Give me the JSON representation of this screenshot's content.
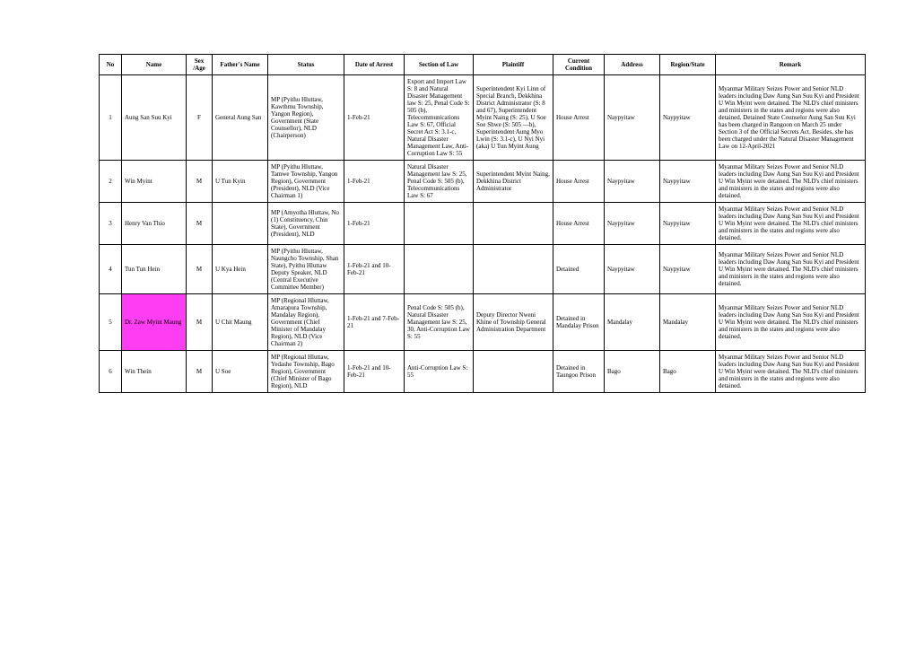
{
  "columns": [
    "No",
    "Name",
    "Sex /Age",
    "Father's Name",
    "Status",
    "Date of Arrest",
    "Section of Law",
    "Plaintiff",
    "Current Condition",
    "Address",
    "Region/State",
    "Remark"
  ],
  "rows": [
    {
      "no": "1",
      "name": "Aung San Suu Kyi",
      "sex": "F",
      "father": "General Aung San",
      "status": "MP (Pyithu Hluttaw, Kawthmu Township, Yangon Region), Government (State Counsellor), NLD (Chairperson)",
      "date": "1-Feb-21",
      "section": "Export and Import Law S: 8 and Natural Disaster Management law S: 25, Penal Code S: 505 (b), Telecommunications Law S: 67, Official Secret Act S: 3.1-c, Natural Disaster Management Law, Anti-Corruption Law S: 55",
      "plaintiff": "Superintendent Kyi Linn of Special Branch, Dekkhina District Administrator (S: 8 and 67), Superintendent Myint Naing (S: 25), U Soe Soe Shwe (S: 505 —b), Superintendent Aung Myo Lwin (S: 3.1-c), U Nyi Nyi (aka) U Tun Myint Aung",
      "condition": "House Arrest",
      "address": "Naypyitaw",
      "region": "Naypyitaw",
      "remark": "Myanmar Military Seizes Power and Senior NLD leaders including Daw Aung San Suu Kyi and President U Win Myint were detained. The NLD's chief ministers and ministers in the states and regions were also detained.\nDetained State Counselor Aung San Suu Kyi has been charged in Rangoon on March 25 under Section 3 of the Official Secrets Act. Besides, she has been charged under the Natural Disaster Management Law on 12-April-2021",
      "highlight": false
    },
    {
      "no": "2",
      "name": "Win Myint",
      "sex": "M",
      "father": "U Tun Kyin",
      "status": "MP (Pyithu Hluttaw, Tamwe Township, Yangon Region), Government (President), NLD (Vice Chairman 1)",
      "date": "1-Feb-21",
      "section": "Natural Disaster Management law S: 25, Penal Code S: 505 (b), Telecommunications Law S: 67",
      "plaintiff": "Superintendent Myint Naing, Dekkhina District Administrator",
      "condition": "House Arrest",
      "address": "Naypyitaw",
      "region": "Naypyitaw",
      "remark": "Myanmar Military Seizes Power and Senior NLD leaders including Daw Aung San Suu Kyi and President U Win Myint were detained. The NLD's chief ministers and ministers in the states and regions were also detained.",
      "highlight": false
    },
    {
      "no": "3",
      "name": "Henry Van Thio",
      "sex": "M",
      "father": "",
      "status": "MP (Amyotha Hluttaw, No (1) Constituency, Chin State), Government (President), NLD",
      "date": "1-Feb-21",
      "section": "",
      "plaintiff": "",
      "condition": "House Arrest",
      "address": "Naypyitaw",
      "region": "Naypyitaw",
      "remark": "Myanmar Military Seizes Power and Senior NLD leaders including Daw Aung San Suu Kyi and President U Win Myint were detained. The NLD's chief ministers and ministers in the states and regions were also detained.",
      "highlight": false
    },
    {
      "no": "4",
      "name": "Tun Tun Hein",
      "sex": "M",
      "father": "U Kya Hein",
      "status": "MP (Pyithu Hluttaw, Naungcho Township, Shan State), Pyithu Hluttaw Deputy Speaker, NLD (Central Executive Committee Member)",
      "date": "1-Feb-21 and 10-Feb-21",
      "section": "",
      "plaintiff": "",
      "condition": "Detained",
      "address": "Naypyitaw",
      "region": "Naypyitaw",
      "remark": "Myanmar Military Seizes Power and Senior NLD leaders including Daw Aung San Suu Kyi and President U Win Myint were detained. The NLD's chief ministers and ministers in the states and regions were also detained.",
      "highlight": false
    },
    {
      "no": "5",
      "name": "Dr. Zaw Myint Maung",
      "sex": "M",
      "father": "U Chit Maung",
      "status": "MP (Regional Hluttaw, Amarapura Township, Mandalay Region), Government (Chief Minister of Mandalay Region), NLD (Vice Chairman 2)",
      "date": "1-Feb-21 and 7-Feb-21",
      "section": "Penal Code S: 505 (b), Natural Disaster Management law S: 25, 30, Anti-Corruption Law S: 55",
      "plaintiff": "Deputy Director  Nweni Khine of Township General Administration Department",
      "condition": "Detained in Mandalay Prison",
      "address": "Mandalay",
      "region": "Mandalay",
      "remark": "Myanmar Military Seizes Power and Senior NLD leaders including Daw Aung San Suu Kyi and President U Win Myint were detained. The NLD's chief ministers and ministers in the states and regions were also detained.",
      "highlight": true
    },
    {
      "no": "6",
      "name": "Win Thein",
      "sex": "M",
      "father": "U Soe",
      "status": "MP (Regional Hluttaw, Yedashe Township, Bago Region), Government (Chief Minister of Bago Region), NLD",
      "date": "1-Feb-21 and 10-Feb-21",
      "section": "Anti-Corruption Law S: 55",
      "plaintiff": "",
      "condition": "Detained in Taungoo Prison",
      "address": "Bago",
      "region": "Bago",
      "remark": "Myanmar Military Seizes Power and Senior NLD leaders including Daw Aung San Suu Kyi and President U Win Myint were detained. The NLD's chief ministers and ministers in the states and regions were also detained.",
      "highlight": false
    }
  ],
  "colClasses": [
    "col-no",
    "col-name",
    "col-sex",
    "col-father",
    "col-status",
    "col-date",
    "col-section",
    "col-plaintiff",
    "col-cond",
    "col-address",
    "col-region",
    "col-remark"
  ],
  "highlightColor": "#ff3ef2"
}
